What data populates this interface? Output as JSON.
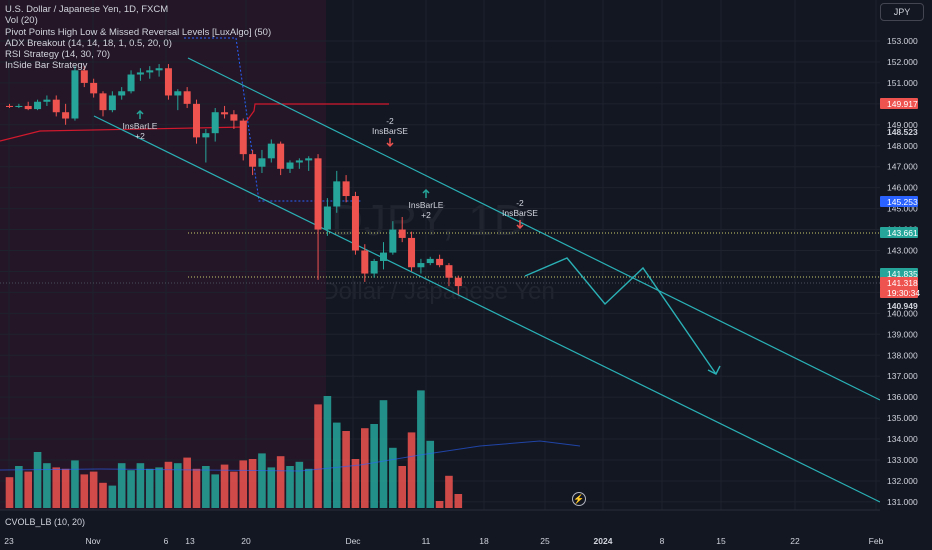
{
  "legend": {
    "symbol": "U.S. Dollar / Japanese Yen, 1D, FXCM",
    "vol": "Vol (20)",
    "pivot": "Pivot Points High Low & Missed Reversal Levels [LuxAlgo] (50)",
    "adx": "ADX Breakout (14, 14, 18, 1, 0.5, 20, 0)",
    "rsi": "RSI Strategy (14, 30, 70)",
    "insidebar": "InSide Bar Strategy"
  },
  "currency_button": "JPY",
  "bottom_indicator": "CVOLB_LB (10, 20)",
  "watermark": {
    "ticker": "USDJPY, 1D",
    "name": "U.S. Dollar / Japanese Yen"
  },
  "colors": {
    "bull": "#26a69a",
    "bear": "#ef5350",
    "background": "#131722",
    "channel": "#2ab0b5",
    "magenta_zone": "#241627",
    "pivot_line": "#d1192d",
    "blue_line": "#2962ff",
    "dotted_line": "#c9cc6b"
  },
  "x_axis": {
    "labels": [
      "23",
      "Nov",
      "6",
      "13",
      "20",
      "Dec",
      "11",
      "18",
      "25",
      "2024",
      "8",
      "15",
      "22",
      "Feb"
    ]
  },
  "y_axis": {
    "ticks": [
      "153.000",
      "152.000",
      "151.000",
      "150.000",
      "149.000",
      "148.000",
      "147.000",
      "146.000",
      "145.000",
      "144.000",
      "143.000",
      "142.000",
      "141.000",
      "140.000",
      "139.000",
      "138.000",
      "137.000",
      "136.000",
      "135.000",
      "134.000",
      "133.000",
      "132.000",
      "131.000"
    ],
    "tags": [
      {
        "text": "149.917",
        "bg": "#ef5350",
        "fg": "#ffffff",
        "value": 149.917
      },
      {
        "text": "148.523",
        "bg": "#131722",
        "fg": "#d1d4dc",
        "value": 148.523
      },
      {
        "text": "145.253",
        "bg": "#2962ff",
        "fg": "#ffffff",
        "value": 145.253
      },
      {
        "text": "143.661",
        "bg": "#26a69a",
        "fg": "#ffffff",
        "value": 143.661
      },
      {
        "text": "141.835",
        "bg": "#26a69a",
        "fg": "#ffffff",
        "value": 141.835
      },
      {
        "text": "141.318",
        "bg": "#ef5350",
        "fg": "#ffffff",
        "value": 141.318
      },
      {
        "text": "19:30:34",
        "bg": "#ef5350",
        "fg": "#ffffff",
        "value": 140.949
      },
      {
        "text": "140.949",
        "bg": "#131722",
        "fg": "#d1d4dc",
        "value": 140.949
      }
    ]
  },
  "annotations": [
    {
      "name": "insbarle-1",
      "lines": [
        "InsBarLE",
        "+2"
      ],
      "type": "long"
    },
    {
      "name": "insbarse-1",
      "lines": [
        "-2",
        "InsBarSE"
      ],
      "type": "short"
    },
    {
      "name": "insbarle-2",
      "lines": [
        "InsBarLE",
        "+2"
      ],
      "type": "long"
    },
    {
      "name": "insbarse-2",
      "lines": [
        "-2",
        "InsBarSE"
      ],
      "type": "short"
    }
  ],
  "chart_data": {
    "type": "candlestick",
    "symbol": "USDJPY",
    "interval": "1D",
    "ylim": [
      130.6,
      154.0
    ],
    "candles": [
      [
        149.9,
        150.0,
        149.8,
        149.85
      ],
      [
        149.85,
        150.0,
        149.8,
        149.9
      ],
      [
        149.9,
        150.1,
        149.7,
        149.75
      ],
      [
        149.75,
        150.2,
        149.7,
        150.1
      ],
      [
        150.1,
        150.4,
        149.9,
        150.2
      ],
      [
        150.2,
        150.4,
        149.4,
        149.6
      ],
      [
        149.6,
        150.0,
        149.0,
        149.3
      ],
      [
        149.3,
        151.8,
        149.2,
        151.6
      ],
      [
        151.6,
        151.8,
        150.8,
        151.0
      ],
      [
        151.0,
        151.2,
        150.3,
        150.5
      ],
      [
        150.5,
        150.6,
        149.4,
        149.7
      ],
      [
        149.7,
        150.6,
        149.6,
        150.4
      ],
      [
        150.4,
        150.8,
        150.2,
        150.6
      ],
      [
        150.6,
        151.6,
        150.5,
        151.4
      ],
      [
        151.4,
        151.7,
        151.1,
        151.5
      ],
      [
        151.5,
        151.8,
        151.2,
        151.6
      ],
      [
        151.6,
        151.9,
        151.3,
        151.7
      ],
      [
        151.7,
        151.9,
        150.2,
        150.4
      ],
      [
        150.4,
        150.7,
        149.7,
        150.6
      ],
      [
        150.6,
        150.8,
        149.8,
        150.0
      ],
      [
        150.0,
        150.2,
        148.1,
        148.4
      ],
      [
        148.4,
        148.8,
        147.2,
        148.6
      ],
      [
        148.6,
        149.8,
        148.2,
        149.6
      ],
      [
        149.6,
        149.9,
        149.3,
        149.5
      ],
      [
        149.5,
        149.7,
        148.8,
        149.2
      ],
      [
        149.2,
        149.3,
        147.3,
        147.6
      ],
      [
        147.6,
        147.8,
        146.6,
        147.0
      ],
      [
        147.0,
        147.8,
        146.7,
        147.4
      ],
      [
        147.4,
        148.3,
        147.2,
        148.1
      ],
      [
        148.1,
        148.2,
        146.6,
        146.9
      ],
      [
        146.9,
        147.3,
        146.7,
        147.2
      ],
      [
        147.2,
        147.4,
        146.9,
        147.3
      ],
      [
        147.3,
        147.5,
        146.8,
        147.4
      ],
      [
        147.4,
        147.6,
        141.6,
        144.0
      ],
      [
        144.0,
        145.5,
        143.7,
        145.1
      ],
      [
        145.1,
        146.8,
        144.8,
        146.3
      ],
      [
        146.3,
        146.6,
        145.3,
        145.6
      ],
      [
        145.6,
        145.8,
        142.8,
        143.0
      ],
      [
        143.0,
        143.3,
        141.5,
        141.9
      ],
      [
        141.9,
        142.6,
        141.7,
        142.5
      ],
      [
        142.5,
        143.4,
        142.1,
        142.9
      ],
      [
        142.9,
        144.4,
        142.8,
        144.0
      ],
      [
        144.0,
        144.6,
        143.4,
        143.6
      ],
      [
        143.6,
        143.9,
        142.0,
        142.2
      ],
      [
        142.2,
        142.6,
        141.9,
        142.4
      ],
      [
        142.4,
        142.7,
        142.3,
        142.6
      ],
      [
        142.6,
        142.8,
        142.2,
        142.3
      ],
      [
        142.3,
        142.4,
        141.3,
        141.7
      ],
      [
        141.7,
        141.8,
        140.9,
        141.3
      ]
    ],
    "volume_scale_max": 100,
    "volumes": [
      22,
      30,
      26,
      40,
      32,
      29,
      28,
      34,
      24,
      26,
      18,
      16,
      32,
      27,
      32,
      28,
      29,
      33,
      32,
      36,
      28,
      30,
      24,
      31,
      26,
      34,
      35,
      39,
      29,
      37,
      30,
      33,
      28,
      74,
      80,
      61,
      55,
      35,
      57,
      60,
      77,
      43,
      30,
      54,
      84,
      48,
      5,
      23,
      10
    ]
  }
}
